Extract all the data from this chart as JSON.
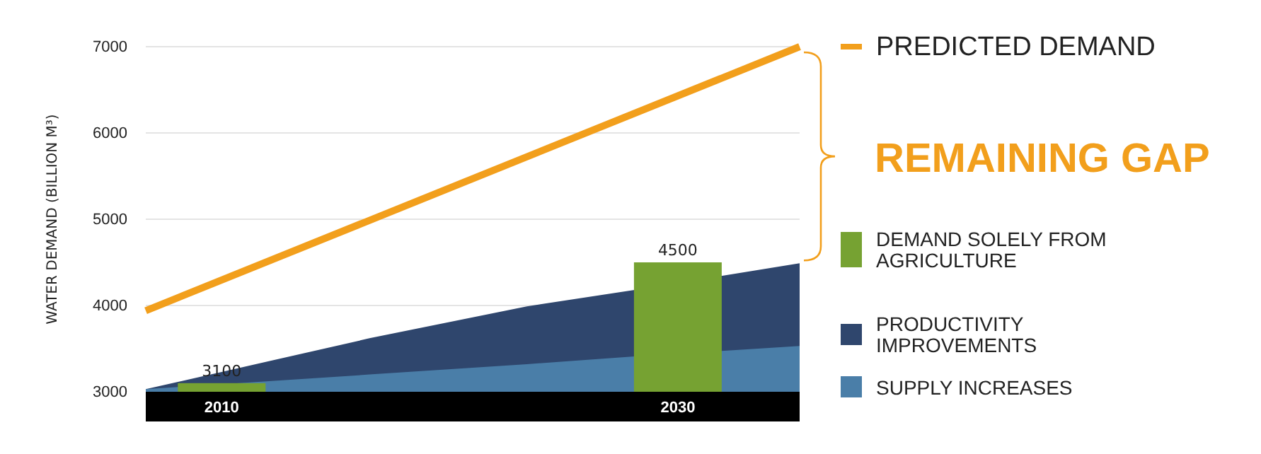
{
  "chart_data": {
    "type": "area",
    "ylabel": "WATER DEMAND (BILLION M³)",
    "xlim": [
      2006.67,
      2035.34
    ],
    "xticks": [
      2010,
      2030
    ],
    "ylim": [
      3000,
      7000
    ],
    "yticks": [
      3000,
      4000,
      5000,
      6000,
      7000
    ],
    "grid": "y",
    "legend": "right",
    "annotations": [
      "REMAINING GAP"
    ],
    "series": [
      {
        "name": "PRODUCTIVITY IMPROVEMENTS",
        "color": "#2f466d",
        "x": [
          2006.67,
          2016.48,
          2023.38,
          2028.1,
          2035.34
        ],
        "values": [
          3030,
          3620,
          3990,
          4180,
          4490
        ]
      },
      {
        "name": "SUPPLY INCREASES",
        "color": "#4a7ea8",
        "x": [
          2006.67,
          2016.48,
          2023.38,
          2028.1,
          2035.34
        ],
        "values": [
          3030,
          3200,
          3320,
          3410,
          3530
        ]
      },
      {
        "name": "DEMAND SOLELY FROM AGRICULTURE",
        "type": "bar",
        "color": "#76a232",
        "x": [
          2010,
          2030
        ],
        "values": [
          3100,
          4500
        ],
        "value_labels": [
          "3100",
          "4500"
        ]
      },
      {
        "name": "PREDICTED DEMAND",
        "type": "line",
        "color": "#f29f1c",
        "x": [
          2006.67,
          2035.34
        ],
        "values": [
          3940,
          7000
        ]
      }
    ]
  }
}
